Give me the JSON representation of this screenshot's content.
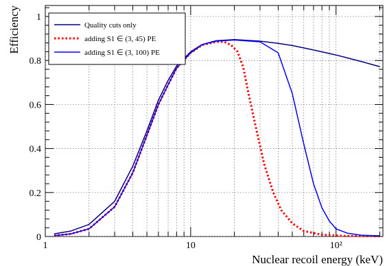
{
  "chart_data": {
    "type": "line",
    "xlabel": "Nuclear recoil energy (keV)",
    "ylabel": "Efficiency",
    "xscale": "log",
    "xlim": [
      1,
      210
    ],
    "ylim": [
      0,
      1.05
    ],
    "grid": true,
    "legend_placement": "top-left",
    "x_ticks": [
      {
        "value": 1,
        "label": "1"
      },
      {
        "value": 10,
        "label": "10"
      },
      {
        "value": 100,
        "label": "10²"
      }
    ],
    "y_ticks": [
      {
        "value": 0,
        "label": "0"
      },
      {
        "value": 0.2,
        "label": "0.2"
      },
      {
        "value": 0.4,
        "label": "0.4"
      },
      {
        "value": 0.6,
        "label": "0.6"
      },
      {
        "value": 0.8,
        "label": "0.8"
      },
      {
        "value": 1,
        "label": "1"
      }
    ],
    "series": [
      {
        "name": "Quality cuts only",
        "color": "#000080",
        "style": "solid",
        "points": [
          [
            1.15,
            0.012
          ],
          [
            1.5,
            0.025
          ],
          [
            2,
            0.055
          ],
          [
            3,
            0.16
          ],
          [
            4,
            0.32
          ],
          [
            5,
            0.48
          ],
          [
            6,
            0.62
          ],
          [
            7,
            0.71
          ],
          [
            8,
            0.775
          ],
          [
            10,
            0.84
          ],
          [
            12,
            0.873
          ],
          [
            15,
            0.89
          ],
          [
            20,
            0.895
          ],
          [
            30,
            0.888
          ],
          [
            40,
            0.878
          ],
          [
            50,
            0.868
          ],
          [
            70,
            0.848
          ],
          [
            100,
            0.825
          ],
          [
            150,
            0.795
          ],
          [
            200,
            0.772
          ]
        ]
      },
      {
        "name": "adding S1 ∈ (3, 45) PE",
        "color": "#ff0000",
        "style": "dotted",
        "points": [
          [
            1.15,
            0.004
          ],
          [
            1.5,
            0.012
          ],
          [
            2,
            0.035
          ],
          [
            3,
            0.135
          ],
          [
            4,
            0.29
          ],
          [
            5,
            0.46
          ],
          [
            6,
            0.6
          ],
          [
            7,
            0.69
          ],
          [
            8,
            0.765
          ],
          [
            10,
            0.835
          ],
          [
            12,
            0.87
          ],
          [
            15,
            0.885
          ],
          [
            17,
            0.885
          ],
          [
            19,
            0.87
          ],
          [
            21,
            0.84
          ],
          [
            23,
            0.77
          ],
          [
            25,
            0.65
          ],
          [
            28,
            0.5
          ],
          [
            32,
            0.33
          ],
          [
            37,
            0.2
          ],
          [
            42,
            0.12
          ],
          [
            50,
            0.06
          ],
          [
            60,
            0.025
          ],
          [
            80,
            0.008
          ],
          [
            110,
            0.003
          ],
          [
            200,
            0.001
          ]
        ]
      },
      {
        "name": "adding S1 ∈ (3, 100) PE",
        "color": "#0000ff",
        "style": "solid",
        "points": [
          [
            1.15,
            0.004
          ],
          [
            1.5,
            0.012
          ],
          [
            2,
            0.035
          ],
          [
            3,
            0.135
          ],
          [
            4,
            0.29
          ],
          [
            5,
            0.46
          ],
          [
            6,
            0.6
          ],
          [
            7,
            0.69
          ],
          [
            8,
            0.765
          ],
          [
            10,
            0.835
          ],
          [
            12,
            0.872
          ],
          [
            15,
            0.888
          ],
          [
            20,
            0.893
          ],
          [
            30,
            0.885
          ],
          [
            40,
            0.835
          ],
          [
            50,
            0.65
          ],
          [
            60,
            0.42
          ],
          [
            70,
            0.24
          ],
          [
            80,
            0.13
          ],
          [
            90,
            0.07
          ],
          [
            100,
            0.035
          ],
          [
            120,
            0.015
          ],
          [
            150,
            0.006
          ],
          [
            200,
            0.003
          ]
        ]
      }
    ]
  }
}
